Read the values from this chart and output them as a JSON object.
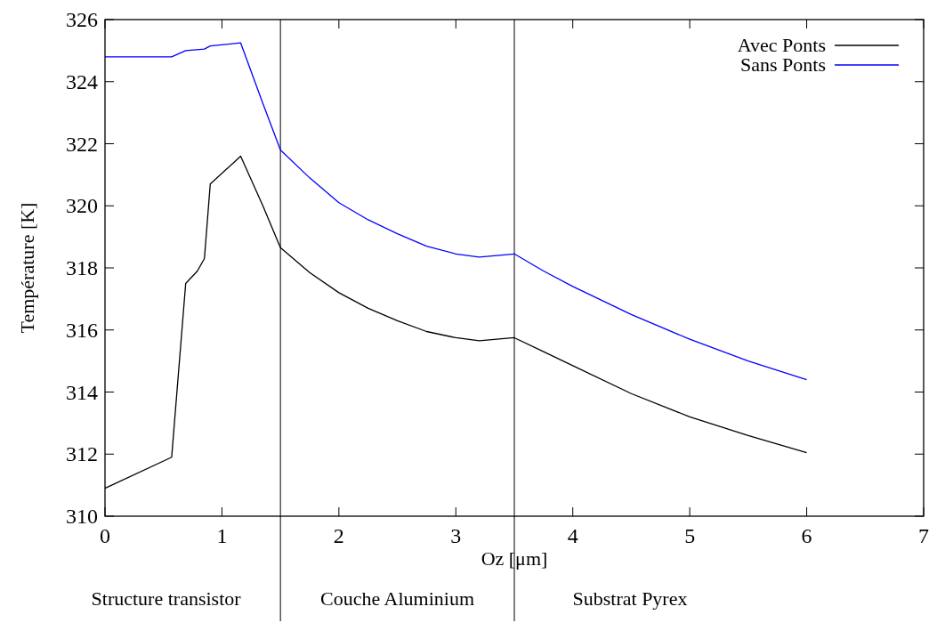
{
  "chart_data": {
    "type": "line",
    "xlabel": "Oz [μm]",
    "ylabel": "Température [K]",
    "xlim": [
      0,
      7
    ],
    "ylim": [
      310,
      326
    ],
    "xticks": [
      0,
      1,
      2,
      3,
      4,
      5,
      6,
      7
    ],
    "yticks": [
      310,
      312,
      314,
      316,
      318,
      320,
      322,
      324,
      326
    ],
    "grid": false,
    "legend": "top right",
    "line_style": "solid",
    "series": [
      {
        "name": "Avec Ponts",
        "color": "#000000",
        "x": [
          0,
          0.57,
          0.69,
          0.79,
          0.85,
          0.9,
          1.16,
          1.35,
          1.5,
          1.75,
          2,
          2.25,
          2.5,
          2.75,
          3,
          3.2,
          3.5,
          3.75,
          4,
          4.5,
          5,
          5.5,
          6
        ],
        "values": [
          310.9,
          311.9,
          317.5,
          317.9,
          318.3,
          320.7,
          321.6,
          320.0,
          318.65,
          317.85,
          317.2,
          316.7,
          316.3,
          315.95,
          315.75,
          315.65,
          315.75,
          315.3,
          314.85,
          313.95,
          313.2,
          312.6,
          312.05
        ]
      },
      {
        "name": "Sans Ponts",
        "color": "#0000ff",
        "x": [
          0,
          0.57,
          0.69,
          0.85,
          0.9,
          1.16,
          1.35,
          1.5,
          1.75,
          2,
          2.25,
          2.5,
          2.75,
          3,
          3.2,
          3.5,
          3.75,
          4,
          4.5,
          5,
          5.5,
          6
        ],
        "values": [
          324.8,
          324.8,
          325.0,
          325.05,
          325.15,
          325.25,
          323.3,
          321.8,
          320.9,
          320.1,
          319.55,
          319.1,
          318.7,
          318.45,
          318.35,
          318.45,
          317.9,
          317.4,
          316.5,
          315.7,
          315.0,
          314.4
        ]
      }
    ],
    "ref_lines": [
      {
        "axis": "x",
        "value": 1.5
      },
      {
        "axis": "x",
        "value": 3.5
      }
    ],
    "annotations": [
      "Structure transistor",
      "Couche Aluminium",
      "Substrat Pyrex"
    ]
  }
}
